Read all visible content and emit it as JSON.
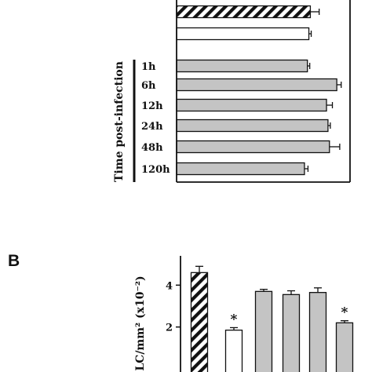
{
  "chart_data": [
    {
      "type": "bar",
      "orientation": "horizontal",
      "panel_label": "",
      "group_label": "Time post-infection",
      "categories": [
        "",
        "",
        "1h",
        "6h",
        "12h",
        "24h",
        "48h",
        "120h"
      ],
      "values": [
        4.55,
        4.5,
        4.45,
        5.45,
        5.1,
        5.15,
        5.2,
        4.35
      ],
      "errors": [
        0.3,
        0.08,
        0.08,
        0.15,
        0.2,
        0.08,
        0.35,
        0.12
      ],
      "styles": [
        "hatched",
        "white",
        "gray",
        "gray",
        "gray",
        "gray",
        "gray",
        "gray"
      ],
      "xlim": [
        0,
        5.9
      ]
    },
    {
      "type": "bar",
      "panel_label": "B",
      "ylabel": "LC/mm² (x10⁻²)",
      "yticks": [
        "4",
        "2"
      ],
      "ylim": [
        0,
        5.4
      ],
      "categories": [
        "",
        "",
        "",
        "",
        "",
        ""
      ],
      "values": [
        4.6,
        1.85,
        3.7,
        3.55,
        3.65,
        2.2
      ],
      "errors": [
        0.3,
        0.12,
        0.1,
        0.18,
        0.22,
        0.1
      ],
      "styles": [
        "hatched",
        "white",
        "gray",
        "gray",
        "gray",
        "gray"
      ],
      "annotations": [
        "",
        "*",
        "",
        "",
        "",
        "*"
      ]
    }
  ],
  "colors": {
    "bar_gray": "#c4c4c4",
    "ink": "#111111",
    "white": "#ffffff"
  }
}
